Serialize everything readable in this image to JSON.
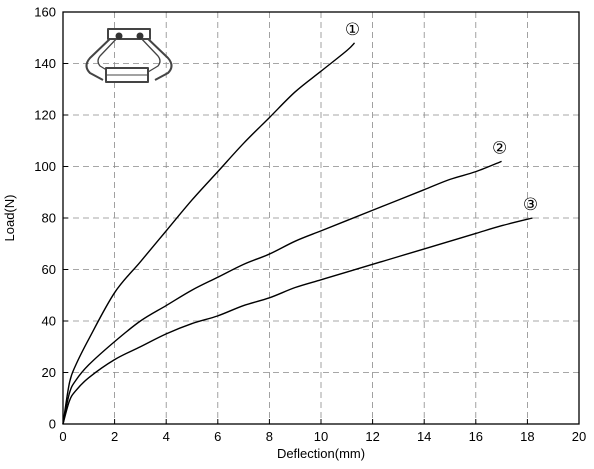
{
  "chart_data": {
    "type": "line",
    "xlabel": "Deflection(mm)",
    "ylabel": "Load(N)",
    "xlim": [
      0,
      20
    ],
    "ylim": [
      0,
      160
    ],
    "xticks": [
      0,
      2,
      4,
      6,
      8,
      10,
      12,
      14,
      16,
      18,
      20
    ],
    "yticks": [
      0,
      20,
      40,
      60,
      80,
      100,
      120,
      140,
      160
    ],
    "grid": true,
    "grid_style": "dashed",
    "line_color": "#000000",
    "series": [
      {
        "label": "①",
        "x": [
          0,
          0.25,
          0.5,
          1,
          2,
          3,
          4,
          5,
          6,
          7,
          8,
          9,
          10,
          11,
          11.3
        ],
        "y": [
          0,
          16,
          23,
          33,
          51,
          63,
          75,
          87,
          98,
          109,
          119,
          129,
          137,
          145,
          148
        ]
      },
      {
        "label": "②",
        "x": [
          0,
          0.25,
          0.5,
          1,
          2,
          3,
          4,
          5,
          6,
          7,
          8,
          9,
          10,
          11,
          12,
          13,
          14,
          15,
          16,
          17
        ],
        "y": [
          0,
          12,
          17,
          23,
          32,
          40,
          46,
          52,
          57,
          62,
          66,
          71,
          75,
          79,
          83,
          87,
          91,
          95,
          98,
          102
        ]
      },
      {
        "label": "③",
        "x": [
          0,
          0.25,
          0.5,
          1,
          2,
          3,
          4,
          5,
          6,
          7,
          8,
          9,
          10,
          11,
          12,
          13,
          14,
          15,
          16,
          17,
          18.2
        ],
        "y": [
          0,
          9,
          13,
          18,
          25,
          30,
          35,
          39,
          42,
          46,
          49,
          53,
          56,
          59,
          62,
          65,
          68,
          71,
          74,
          77,
          80
        ]
      }
    ]
  }
}
